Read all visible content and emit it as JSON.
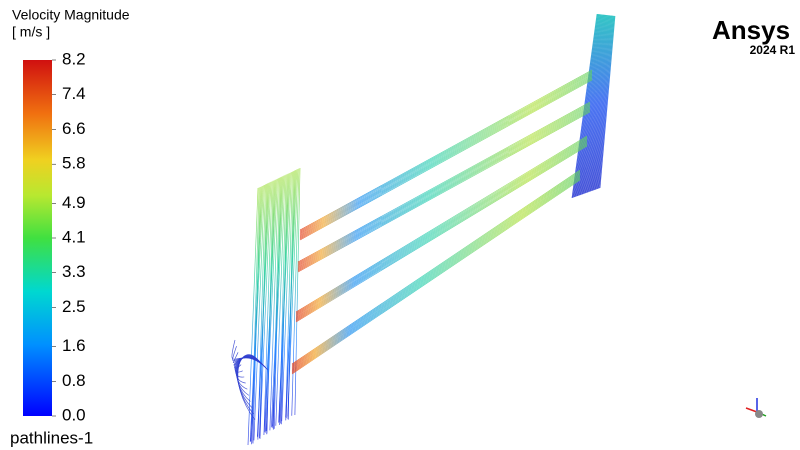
{
  "colorbar": {
    "title": "Velocity Magnitude",
    "unit": "[ m/s ]",
    "range": [
      0,
      8.2
    ],
    "ticks": [
      8.2,
      7.4,
      6.6,
      5.8,
      4.9,
      4.1,
      3.3,
      2.5,
      1.6,
      0.8,
      {
        "value": 0,
        "label": "0.0"
      }
    ]
  },
  "object_name": "pathlines-1",
  "brand": {
    "name": "Ansys",
    "version": "2024 R1"
  }
}
